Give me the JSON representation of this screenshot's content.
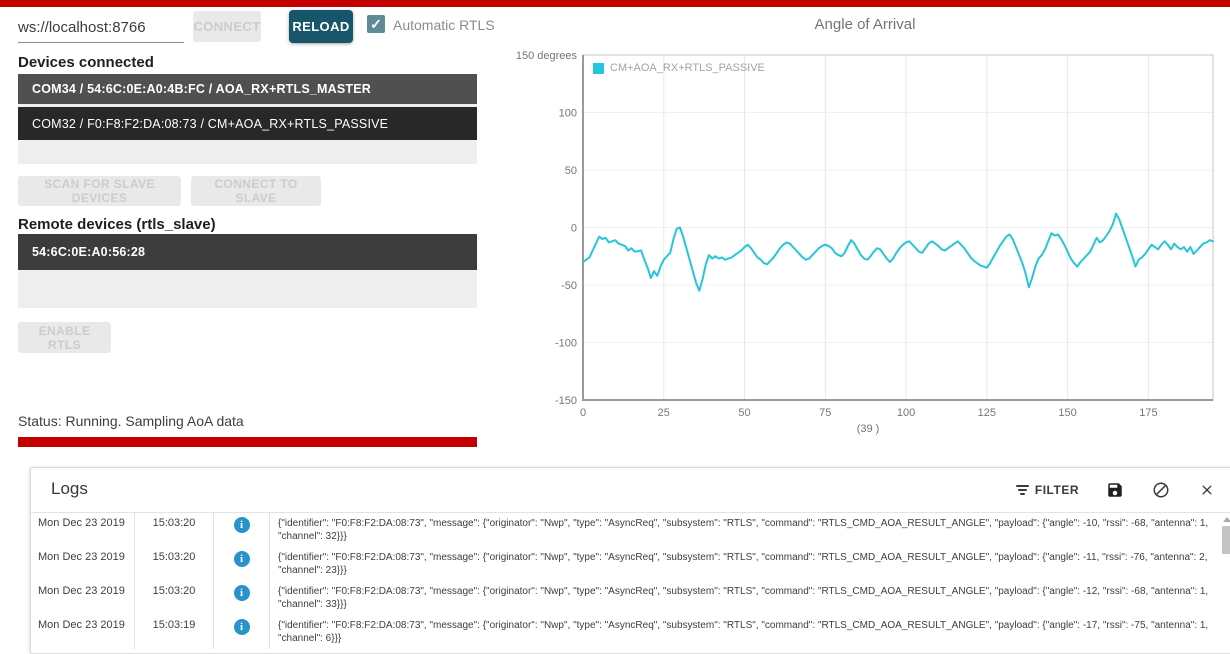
{
  "topbar": {
    "url_value": "ws://localhost:8766",
    "connect_label": "CONNECT",
    "reload_label": "RELOAD",
    "auto_rtls_label": "Automatic RTLS",
    "auto_rtls_checked": true,
    "check_glyph": "✓"
  },
  "devices": {
    "title": "Devices connected",
    "items": [
      "COM34 / 54:6C:0E:A0:4B:FC / AOA_RX+RTLS_MASTER",
      "COM32 / F0:F8:F2:DA:08:73 / CM+AOA_RX+RTLS_PASSIVE"
    ]
  },
  "slave_actions": {
    "scan_label": "SCAN FOR SLAVE DEVICES",
    "connect_label": "CONNECT TO SLAVE"
  },
  "remote": {
    "title": "Remote devices (rtls_slave)",
    "items": [
      "54:6C:0E:A0:56:28"
    ]
  },
  "enable_rtls_label": "ENABLE RTLS",
  "status_text": "Status: Running. Sampling AoA data",
  "colors": {
    "accent_red": "#c40000",
    "teal_button": "#17566a",
    "chart_line": "#26c6da",
    "info_icon": "#2793ca",
    "checkbox": "#5f8a98"
  },
  "chart_data": {
    "type": "line",
    "title": "Angle of Arrival",
    "series": [
      {
        "name": "CM+AOA_RX+RTLS_PASSIVE",
        "color": "#26c6da"
      }
    ],
    "xlabel": "(39 )",
    "ylabel_unit": "degrees",
    "xlim": [
      0,
      195
    ],
    "ylim": [
      -150,
      150
    ],
    "x_ticks": [
      0,
      25,
      50,
      75,
      100,
      125,
      150,
      175
    ],
    "y_ticks": [
      150,
      100,
      50,
      0,
      -50,
      -100,
      -150
    ],
    "y_tick_labels": [
      "150 degrees",
      "100",
      "50",
      "0",
      "-50",
      "-100",
      "-150"
    ],
    "grid": true,
    "legend_position": "top-left",
    "points": [
      [
        0,
        -30
      ],
      [
        2,
        -26
      ],
      [
        4,
        -14
      ],
      [
        5,
        -8
      ],
      [
        6,
        -10
      ],
      [
        7,
        -9
      ],
      [
        8,
        -13
      ],
      [
        10,
        -11
      ],
      [
        11,
        -14
      ],
      [
        13,
        -16
      ],
      [
        14,
        -20
      ],
      [
        15,
        -18
      ],
      [
        16,
        -21
      ],
      [
        18,
        -20
      ],
      [
        19,
        -28
      ],
      [
        20,
        -35
      ],
      [
        21,
        -44
      ],
      [
        22,
        -38
      ],
      [
        23,
        -42
      ],
      [
        24,
        -34
      ],
      [
        25,
        -28
      ],
      [
        26,
        -25
      ],
      [
        27,
        -22
      ],
      [
        28,
        -10
      ],
      [
        29,
        -1
      ],
      [
        30,
        0
      ],
      [
        31,
        -8
      ],
      [
        32,
        -18
      ],
      [
        33,
        -28
      ],
      [
        34,
        -38
      ],
      [
        35,
        -48
      ],
      [
        36,
        -55
      ],
      [
        37,
        -45
      ],
      [
        38,
        -32
      ],
      [
        39,
        -24
      ],
      [
        40,
        -27
      ],
      [
        41,
        -25
      ],
      [
        42,
        -27
      ],
      [
        43,
        -26
      ],
      [
        44,
        -28
      ],
      [
        45,
        -27
      ],
      [
        46,
        -26
      ],
      [
        47,
        -24
      ],
      [
        48,
        -22
      ],
      [
        49,
        -20
      ],
      [
        50,
        -17
      ],
      [
        51,
        -15
      ],
      [
        52,
        -18
      ],
      [
        53,
        -22
      ],
      [
        54,
        -26
      ],
      [
        55,
        -28
      ],
      [
        56,
        -31
      ],
      [
        57,
        -32
      ],
      [
        58,
        -29
      ],
      [
        59,
        -26
      ],
      [
        60,
        -22
      ],
      [
        61,
        -18
      ],
      [
        62,
        -15
      ],
      [
        63,
        -13
      ],
      [
        64,
        -14
      ],
      [
        65,
        -17
      ],
      [
        66,
        -20
      ],
      [
        67,
        -23
      ],
      [
        68,
        -26
      ],
      [
        69,
        -28
      ],
      [
        70,
        -27
      ],
      [
        71,
        -24
      ],
      [
        72,
        -21
      ],
      [
        73,
        -18
      ],
      [
        74,
        -16
      ],
      [
        75,
        -15
      ],
      [
        76,
        -16
      ],
      [
        77,
        -18
      ],
      [
        78,
        -22
      ],
      [
        79,
        -24
      ],
      [
        80,
        -25
      ],
      [
        81,
        -22
      ],
      [
        82,
        -16
      ],
      [
        83,
        -11
      ],
      [
        84,
        -14
      ],
      [
        85,
        -19
      ],
      [
        86,
        -24
      ],
      [
        87,
        -27
      ],
      [
        88,
        -28
      ],
      [
        89,
        -25
      ],
      [
        90,
        -21
      ],
      [
        91,
        -18
      ],
      [
        92,
        -19
      ],
      [
        93,
        -23
      ],
      [
        94,
        -27
      ],
      [
        95,
        -30
      ],
      [
        96,
        -27
      ],
      [
        97,
        -22
      ],
      [
        98,
        -18
      ],
      [
        99,
        -15
      ],
      [
        100,
        -13
      ],
      [
        101,
        -12
      ],
      [
        102,
        -15
      ],
      [
        103,
        -18
      ],
      [
        104,
        -21
      ],
      [
        105,
        -22
      ],
      [
        106,
        -18
      ],
      [
        107,
        -14
      ],
      [
        108,
        -12
      ],
      [
        109,
        -14
      ],
      [
        110,
        -16
      ],
      [
        111,
        -19
      ],
      [
        112,
        -20
      ],
      [
        113,
        -18
      ],
      [
        114,
        -16
      ],
      [
        115,
        -14
      ],
      [
        116,
        -12
      ],
      [
        117,
        -15
      ],
      [
        118,
        -18
      ],
      [
        119,
        -22
      ],
      [
        120,
        -26
      ],
      [
        121,
        -29
      ],
      [
        122,
        -31
      ],
      [
        123,
        -33
      ],
      [
        124,
        -34
      ],
      [
        125,
        -35
      ],
      [
        126,
        -31
      ],
      [
        127,
        -26
      ],
      [
        128,
        -21
      ],
      [
        129,
        -16
      ],
      [
        130,
        -12
      ],
      [
        131,
        -8
      ],
      [
        132,
        -6
      ],
      [
        133,
        -10
      ],
      [
        134,
        -17
      ],
      [
        135,
        -24
      ],
      [
        136,
        -31
      ],
      [
        137,
        -40
      ],
      [
        138,
        -52
      ],
      [
        139,
        -44
      ],
      [
        140,
        -34
      ],
      [
        141,
        -27
      ],
      [
        142,
        -24
      ],
      [
        143,
        -19
      ],
      [
        144,
        -12
      ],
      [
        145,
        -5
      ],
      [
        146,
        -7
      ],
      [
        147,
        -6
      ],
      [
        148,
        -10
      ],
      [
        149,
        -15
      ],
      [
        150,
        -21
      ],
      [
        151,
        -27
      ],
      [
        152,
        -31
      ],
      [
        153,
        -34
      ],
      [
        154,
        -30
      ],
      [
        155,
        -27
      ],
      [
        156,
        -24
      ],
      [
        157,
        -21
      ],
      [
        158,
        -15
      ],
      [
        159,
        -9
      ],
      [
        160,
        -13
      ],
      [
        161,
        -11
      ],
      [
        162,
        -7
      ],
      [
        163,
        -3
      ],
      [
        164,
        3
      ],
      [
        165,
        12
      ],
      [
        166,
        7
      ],
      [
        167,
        -1
      ],
      [
        168,
        -9
      ],
      [
        169,
        -17
      ],
      [
        170,
        -25
      ],
      [
        171,
        -34
      ],
      [
        172,
        -28
      ],
      [
        173,
        -26
      ],
      [
        174,
        -23
      ],
      [
        175,
        -19
      ],
      [
        176,
        -15
      ],
      [
        177,
        -17
      ],
      [
        178,
        -19
      ],
      [
        179,
        -15
      ],
      [
        180,
        -12
      ],
      [
        181,
        -15
      ],
      [
        182,
        -19
      ],
      [
        183,
        -14
      ],
      [
        184,
        -17
      ],
      [
        185,
        -19
      ],
      [
        186,
        -17
      ],
      [
        187,
        -21
      ],
      [
        188,
        -17
      ],
      [
        189,
        -23
      ],
      [
        190,
        -20
      ],
      [
        191,
        -17
      ],
      [
        192,
        -14
      ],
      [
        193,
        -13
      ],
      [
        194,
        -11
      ],
      [
        195,
        -12
      ]
    ]
  },
  "logs": {
    "title": "Logs",
    "filter_label": "FILTER",
    "rows": [
      {
        "date": "Mon Dec 23 2019",
        "time": "15:03:20",
        "level": "info",
        "message": "{\"identifier\": \"F0:F8:F2:DA:08:73\", \"message\": {\"originator\": \"Nwp\", \"type\": \"AsyncReq\", \"subsystem\": \"RTLS\", \"command\": \"RTLS_CMD_AOA_RESULT_ANGLE\", \"payload\": {\"angle\": -10, \"rssi\": -68, \"antenna\": 1, \"channel\": 32}}}"
      },
      {
        "date": "Mon Dec 23 2019",
        "time": "15:03:20",
        "level": "info",
        "message": "{\"identifier\": \"F0:F8:F2:DA:08:73\", \"message\": {\"originator\": \"Nwp\", \"type\": \"AsyncReq\", \"subsystem\": \"RTLS\", \"command\": \"RTLS_CMD_AOA_RESULT_ANGLE\", \"payload\": {\"angle\": -11, \"rssi\": -76, \"antenna\": 2, \"channel\": 23}}}"
      },
      {
        "date": "Mon Dec 23 2019",
        "time": "15:03:20",
        "level": "info",
        "message": "{\"identifier\": \"F0:F8:F2:DA:08:73\", \"message\": {\"originator\": \"Nwp\", \"type\": \"AsyncReq\", \"subsystem\": \"RTLS\", \"command\": \"RTLS_CMD_AOA_RESULT_ANGLE\", \"payload\": {\"angle\": -12, \"rssi\": -68, \"antenna\": 1, \"channel\": 33}}}"
      },
      {
        "date": "Mon Dec 23 2019",
        "time": "15:03:19",
        "level": "info",
        "message": "{\"identifier\": \"F0:F8:F2:DA:08:73\", \"message\": {\"originator\": \"Nwp\", \"type\": \"AsyncReq\", \"subsystem\": \"RTLS\", \"command\": \"RTLS_CMD_AOA_RESULT_ANGLE\", \"payload\": {\"angle\": -17, \"rssi\": -75, \"antenna\": 1, \"channel\": 6}}}"
      }
    ]
  }
}
